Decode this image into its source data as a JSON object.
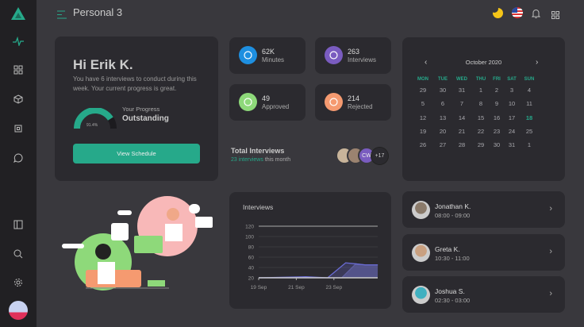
{
  "header": {
    "title": "Personal 3"
  },
  "sidebar": {
    "top_items": [
      "activity-icon",
      "grid-icon",
      "cube-icon",
      "chip-icon",
      "chat-icon"
    ],
    "bottom_items": [
      "sidebar-toggle-icon",
      "search-icon",
      "gear-icon",
      "avatar"
    ]
  },
  "welcome": {
    "greeting": "Hi Erik K.",
    "message": "You have 6 interviews to conduct during this week. Your current progress is great.",
    "progress_label": "Your Progress",
    "progress_status": "Outstanding",
    "progress_value": "91.4%",
    "progress_percent": 91.4,
    "button": "View Schedule"
  },
  "stats": [
    {
      "value": "62K",
      "label": "Minutes",
      "icon": "clock-icon",
      "color": "#1e8fe0"
    },
    {
      "value": "263",
      "label": "Interviews",
      "icon": "broadcast-icon",
      "color": "#7a5cc0"
    },
    {
      "value": "49",
      "label": "Approved",
      "icon": "user-check-icon",
      "color": "#8ed97a"
    },
    {
      "value": "214",
      "label": "Rejected",
      "icon": "sad-face-icon",
      "color": "#f59a70"
    }
  ],
  "total": {
    "title": "Total Interviews",
    "highlight": "23 interviews",
    "suffix": "this month",
    "avatar_initials": "CW",
    "more": "+17"
  },
  "calendar": {
    "month": "October 2020",
    "days": [
      "MON",
      "TUE",
      "WED",
      "THU",
      "FRI",
      "SAT",
      "SUN"
    ],
    "weeks": [
      [
        "29",
        "30",
        "31",
        "1",
        "2",
        "3",
        "4"
      ],
      [
        "5",
        "6",
        "7",
        "8",
        "9",
        "10",
        "11"
      ],
      [
        "12",
        "13",
        "14",
        "15",
        "16",
        "17",
        "18"
      ],
      [
        "19",
        "20",
        "21",
        "22",
        "23",
        "24",
        "25"
      ],
      [
        "26",
        "27",
        "28",
        "29",
        "30",
        "31",
        "1"
      ]
    ],
    "today": "18"
  },
  "chart_data": {
    "type": "area",
    "title": "Interviews",
    "ylim": [
      20,
      120
    ],
    "yticks": [
      "120",
      "100",
      "80",
      "60",
      "40",
      "20"
    ],
    "xticks": [
      "19 Sep",
      "21 Sep",
      "23 Sep"
    ],
    "grid": true,
    "series": [
      {
        "color": "#6a6cd6",
        "x": [
          "2020-09-19T00:00",
          "2020-09-21T12:00",
          "2020-09-22T16:00",
          "2020-09-23T15:00",
          "2020-09-24T04:00",
          "2020-09-24T16:00",
          "2020-09-25T08:00"
        ],
        "values": [
          20,
          22,
          20,
          49,
          47,
          45,
          45
        ]
      },
      {
        "color": "#5a5a8a",
        "x": [
          "2020-09-19T00:00",
          "2020-09-23T10:00",
          "2020-09-24T04:00",
          "2020-09-24T16:00",
          "2020-09-25T08:00"
        ],
        "values": [
          20,
          20,
          47,
          45,
          45
        ]
      }
    ]
  },
  "schedule": [
    {
      "name": "Jonathan K.",
      "time": "08:00 - 09:00"
    },
    {
      "name": "Greta K.",
      "time": "10:30 - 11:00"
    },
    {
      "name": "Joshua S.",
      "time": "02:30 - 03:00"
    }
  ],
  "colors": {
    "accent": "#26a98a",
    "background": "#39383d",
    "card": "#2b2a2f",
    "sidebar": "#212023"
  }
}
